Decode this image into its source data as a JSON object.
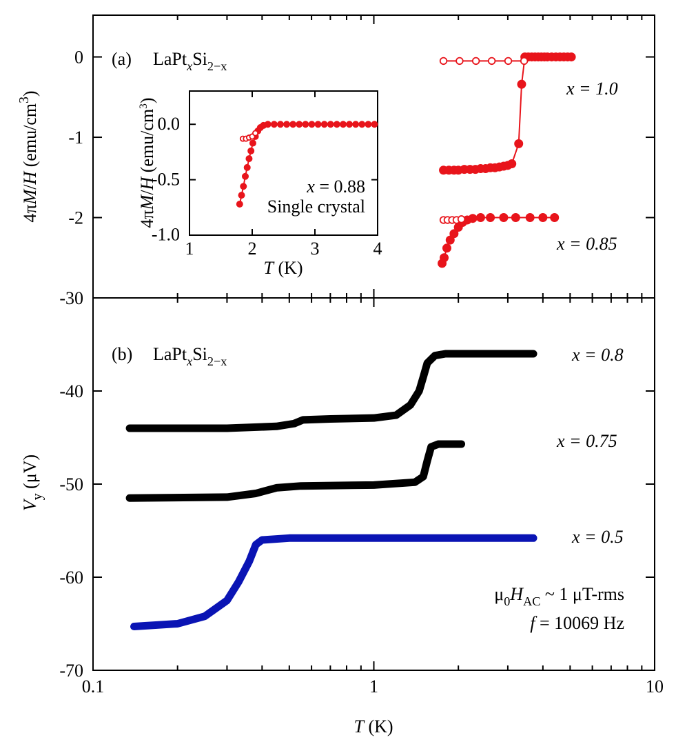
{
  "chart_data": [
    {
      "type": "scatter",
      "panel_label": "(a)",
      "title": [
        "LaPt",
        "x",
        "Si",
        "2−x"
      ],
      "ylabel": [
        "4π",
        "M",
        "/",
        "H",
        " (emu/cm",
        "3",
        ")"
      ],
      "xlog": true,
      "xlim": [
        0.1,
        10
      ],
      "xticks": [
        0.1,
        1,
        10
      ],
      "xtick_labels": false,
      "xminorticks": [
        0.2,
        0.3,
        0.4,
        0.5,
        0.6,
        0.7,
        0.8,
        0.9,
        2,
        3,
        4,
        5,
        6,
        7,
        8,
        9
      ],
      "ylim": [
        -3,
        0.52
      ],
      "yticks": [
        0,
        -1,
        -2
      ],
      "series": [
        {
          "name": "x = 1.0",
          "color": "#e8141b",
          "marker": "filled",
          "line": true,
          "x": [
            1.77,
            1.85,
            1.93,
            2.0,
            2.1,
            2.2,
            2.3,
            2.4,
            2.5,
            2.6,
            2.7,
            2.8,
            2.9,
            3.0,
            3.1,
            3.28,
            3.36,
            3.45,
            3.55,
            3.65,
            3.75,
            3.85,
            3.95,
            4.05,
            4.15,
            4.3,
            4.45,
            4.6,
            4.75,
            4.9,
            5.05
          ],
          "values": [
            -1.41,
            -1.41,
            -1.41,
            -1.41,
            -1.4,
            -1.4,
            -1.4,
            -1.39,
            -1.39,
            -1.38,
            -1.38,
            -1.37,
            -1.36,
            -1.35,
            -1.33,
            -1.08,
            -0.34,
            0,
            0,
            0,
            0,
            0,
            0,
            0,
            0,
            0,
            0,
            0,
            0,
            0,
            0
          ]
        },
        {
          "color": "#e8141b",
          "marker": "open",
          "line": true,
          "x": [
            1.77,
            2.02,
            2.31,
            2.63,
            3.01,
            3.43
          ],
          "values": [
            -0.05,
            -0.05,
            -0.05,
            -0.05,
            -0.05,
            -0.05
          ]
        },
        {
          "name": "x = 0.85",
          "color": "#e8141b",
          "marker": "filled",
          "line": true,
          "x": [
            1.75,
            1.78,
            1.82,
            1.87,
            1.93,
            2.0,
            2.07,
            2.15,
            2.25,
            2.4,
            2.6,
            2.9,
            3.2,
            3.6,
            4.0,
            4.4
          ],
          "values": [
            -2.57,
            -2.5,
            -2.38,
            -2.28,
            -2.2,
            -2.12,
            -2.06,
            -2.03,
            -2.01,
            -2.0,
            -2.0,
            -2.0,
            -2.0,
            -2.0,
            -2.0,
            -2.0
          ]
        },
        {
          "color": "#e8141b",
          "marker": "open",
          "line": true,
          "x": [
            1.77,
            1.83,
            1.9,
            1.97,
            2.05
          ],
          "values": [
            -2.03,
            -2.03,
            -2.03,
            -2.03,
            -2.02
          ]
        }
      ]
    },
    {
      "type": "scatter",
      "ylabel": [
        "4π",
        "M",
        "/",
        "H",
        " (emu/cm",
        "3",
        ")"
      ],
      "xlabel": [
        "T",
        " (K)"
      ],
      "annotations": [
        [
          "x",
          " = 0.88"
        ],
        [
          "Single crystal"
        ]
      ],
      "xlim": [
        1,
        4
      ],
      "xticks": [
        1,
        2,
        3,
        4
      ],
      "ylim": [
        -1.0,
        0.3
      ],
      "yticks": [
        {
          "value": 0,
          "label": "0.0"
        },
        -0.5,
        {
          "value": -1,
          "label": "-1.0"
        }
      ],
      "series": [
        {
          "color": "#e8141b",
          "marker": "filled",
          "line": true,
          "x": [
            1.8,
            1.83,
            1.86,
            1.89,
            1.92,
            1.95,
            1.98,
            2.01,
            2.05,
            2.09,
            2.13,
            2.18,
            2.25,
            2.35,
            2.45,
            2.55,
            2.65,
            2.75,
            2.85,
            2.95,
            3.05,
            3.15,
            3.25,
            3.35,
            3.45,
            3.55,
            3.65,
            3.75,
            3.85,
            3.95
          ],
          "values": [
            -0.72,
            -0.64,
            -0.56,
            -0.47,
            -0.39,
            -0.31,
            -0.24,
            -0.17,
            -0.11,
            -0.06,
            -0.03,
            -0.01,
            0,
            0,
            0,
            0,
            0,
            0,
            0,
            0,
            0,
            0,
            0,
            0,
            0,
            0,
            0,
            0,
            0,
            0
          ]
        },
        {
          "color": "#e8141b",
          "marker": "open",
          "line": true,
          "x": [
            1.85,
            1.9,
            1.95,
            2.0,
            2.05
          ],
          "values": [
            -0.13,
            -0.13,
            -0.12,
            -0.11,
            -0.08
          ]
        }
      ]
    },
    {
      "type": "line",
      "panel_label": "(b)",
      "title": [
        "LaPt",
        "x",
        "Si",
        "2−x"
      ],
      "ylabel": [
        "V",
        "y",
        " (μV)"
      ],
      "xlabel": [
        "T",
        " (K)"
      ],
      "annotations": [
        [
          "μ",
          "0",
          "H",
          "AC",
          " ~ 1 μT-rms"
        ],
        [
          "f",
          " = 10069 Hz"
        ]
      ],
      "xlog": true,
      "xlim": [
        0.1,
        10
      ],
      "xticks": [
        0.1,
        1,
        10
      ],
      "xminorticks": [
        0.2,
        0.3,
        0.4,
        0.5,
        0.6,
        0.7,
        0.8,
        0.9,
        2,
        3,
        4,
        5,
        6,
        7,
        8,
        9
      ],
      "ylim": [
        -70,
        -30
      ],
      "yticks": [
        -70,
        -60,
        -50,
        -40,
        -30
      ],
      "series": [
        {
          "name": "x = 0.8",
          "color": "#000000",
          "marker": "none",
          "line": true,
          "x": [
            0.135,
            0.3,
            0.45,
            0.52,
            0.56,
            0.7,
            1.0,
            1.2,
            1.35,
            1.45,
            1.5,
            1.55,
            1.65,
            1.8,
            3.7
          ],
          "values": [
            -44.0,
            -44.0,
            -43.8,
            -43.5,
            -43.1,
            -43.0,
            -42.9,
            -42.6,
            -41.5,
            -40,
            -38.5,
            -37,
            -36.2,
            -36.0,
            -36.0
          ]
        },
        {
          "name": "x = 0.75",
          "color": "#000000",
          "marker": "none",
          "line": true,
          "x": [
            0.135,
            0.3,
            0.38,
            0.45,
            0.55,
            1.0,
            1.4,
            1.5,
            1.55,
            1.6,
            1.7,
            2.05
          ],
          "values": [
            -51.5,
            -51.4,
            -51.0,
            -50.4,
            -50.2,
            -50.1,
            -49.8,
            -49.2,
            -47.5,
            -46.0,
            -45.7,
            -45.7
          ]
        },
        {
          "name": "x = 0.5",
          "color": "#0a14b4",
          "marker": "none",
          "line": true,
          "x": [
            0.14,
            0.2,
            0.25,
            0.3,
            0.33,
            0.36,
            0.38,
            0.4,
            0.5,
            3.7
          ],
          "values": [
            -65.3,
            -65.0,
            -64.2,
            -62.5,
            -60.5,
            -58.3,
            -56.5,
            -56.0,
            -55.8,
            -55.8
          ]
        }
      ]
    }
  ]
}
